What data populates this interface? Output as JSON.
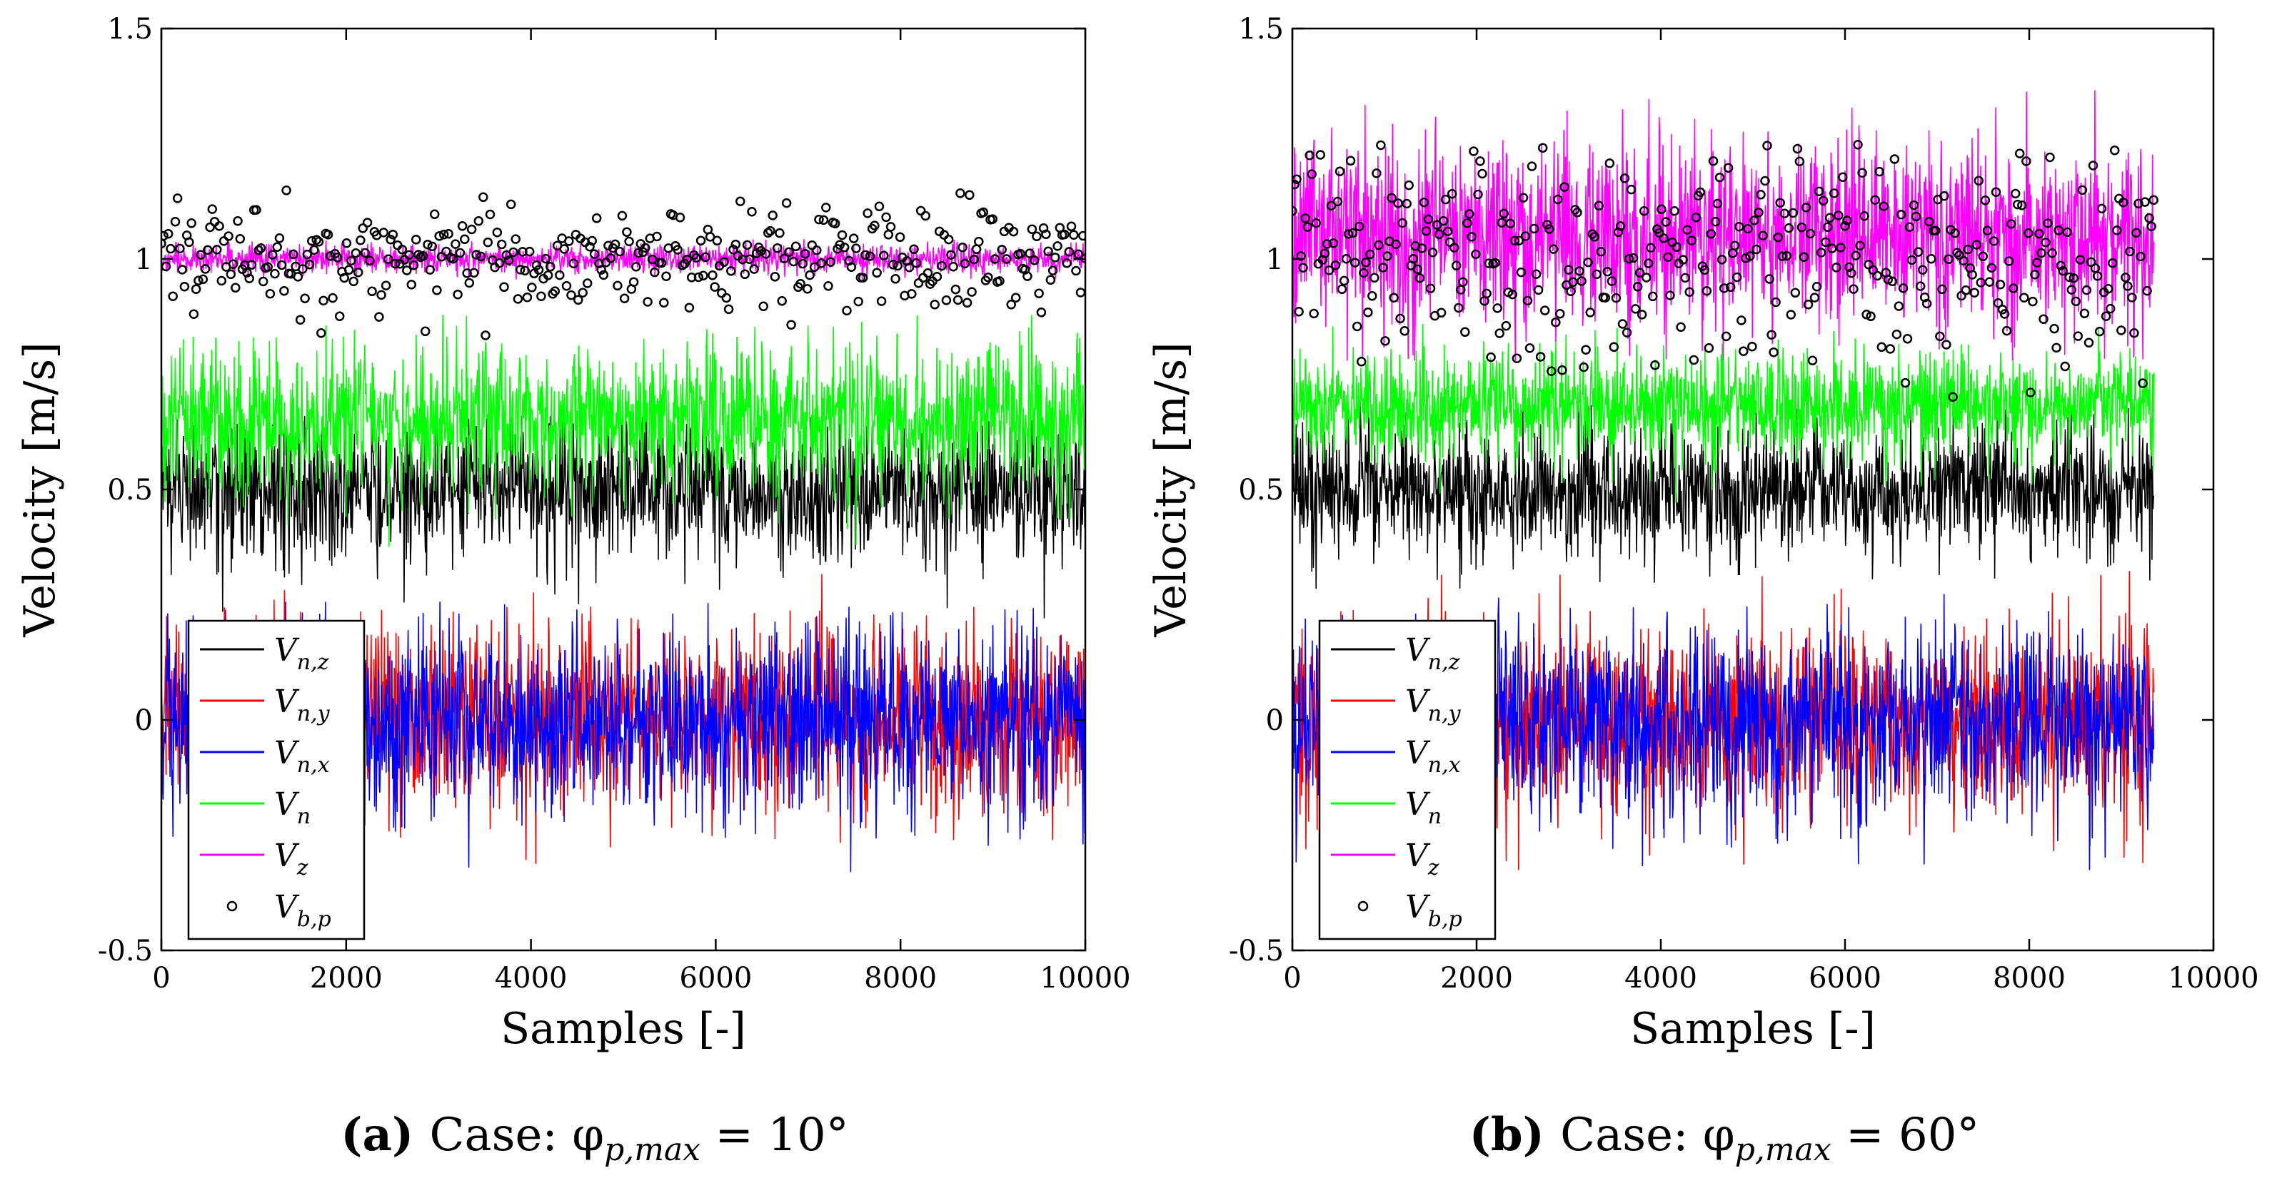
{
  "chart_data": [
    {
      "type": "line",
      "panel": "a",
      "caption": {
        "label": "(a)",
        "text": "Case: φ",
        "sub": "p,max",
        "tail": " = 10°"
      },
      "xlabel": "Samples [-]",
      "ylabel": "Velocity [m/s]",
      "xlim": [
        0,
        10000
      ],
      "ylim": [
        -0.5,
        1.5
      ],
      "xticks": [
        0,
        2000,
        4000,
        6000,
        8000,
        10000
      ],
      "yticks": [
        -0.5,
        0,
        0.5,
        1,
        1.5
      ],
      "ytick_labels": [
        "-0.5",
        "0",
        "0.5",
        "1",
        "1.5"
      ],
      "grid": false,
      "legend_position": "bottom-left",
      "n_samples": 10000,
      "series": [
        {
          "name": "V",
          "name_sub": "n,z",
          "style": "line",
          "color": "#000000",
          "mean": 0.5,
          "std": 0.08,
          "min": 0.2,
          "max": 0.66
        },
        {
          "name": "V",
          "name_sub": "n,y",
          "style": "line",
          "color": "#ff0000",
          "mean": 0.0,
          "std": 0.1,
          "min": -0.32,
          "max": 0.32
        },
        {
          "name": "V",
          "name_sub": "n,x",
          "style": "line",
          "color": "#0000ff",
          "mean": 0.0,
          "std": 0.1,
          "min": -0.33,
          "max": 0.26
        },
        {
          "name": "V",
          "name_sub": "n",
          "style": "line",
          "color": "#00ff00",
          "mean": 0.65,
          "std": 0.08,
          "min": 0.33,
          "max": 0.88
        },
        {
          "name": "V",
          "name_sub": "z",
          "style": "line",
          "color": "#ff00ff",
          "mean": 1.0,
          "std": 0.015,
          "min": 0.95,
          "max": 1.05
        },
        {
          "name": "V",
          "name_sub": "b,p",
          "style": "marker",
          "color": "#000000",
          "mean": 1.0,
          "std": 0.055,
          "min": 0.83,
          "max": 1.15,
          "n_points": 400
        }
      ]
    },
    {
      "type": "line",
      "panel": "b",
      "caption": {
        "label": "(b)",
        "text": "Case: φ",
        "sub": "p,max",
        "tail": " = 60°"
      },
      "xlabel": "Samples [-]",
      "ylabel": "Velocity [m/s]",
      "xlim": [
        0,
        10000
      ],
      "ylim": [
        -0.5,
        1.5
      ],
      "xticks": [
        0,
        2000,
        4000,
        6000,
        8000,
        10000
      ],
      "yticks": [
        -0.5,
        0,
        0.5,
        1,
        1.5
      ],
      "ytick_labels": [
        "-0.5",
        "0",
        "0.5",
        "1",
        "1.5"
      ],
      "grid": false,
      "legend_position": "bottom-left",
      "n_samples": 9350,
      "series": [
        {
          "name": "V",
          "name_sub": "n,z",
          "style": "line",
          "color": "#000000",
          "mean": 0.5,
          "std": 0.07,
          "min": 0.25,
          "max": 0.7
        },
        {
          "name": "V",
          "name_sub": "n,y",
          "style": "line",
          "color": "#ff0000",
          "mean": 0.0,
          "std": 0.1,
          "min": -0.34,
          "max": 0.34
        },
        {
          "name": "V",
          "name_sub": "n,x",
          "style": "line",
          "color": "#0000ff",
          "mean": 0.0,
          "std": 0.1,
          "min": -0.33,
          "max": 0.32
        },
        {
          "name": "V",
          "name_sub": "n",
          "style": "line",
          "color": "#00ff00",
          "mean": 0.68,
          "std": 0.06,
          "min": 0.47,
          "max": 0.87
        },
        {
          "name": "V",
          "name_sub": "z",
          "style": "line",
          "color": "#ff00ff",
          "mean": 1.05,
          "std": 0.1,
          "min": 0.78,
          "max": 1.5
        },
        {
          "name": "V",
          "name_sub": "b,p",
          "style": "marker",
          "color": "#000000",
          "mean": 1.0,
          "std": 0.11,
          "min": 0.7,
          "max": 1.25,
          "n_points": 400
        }
      ]
    }
  ]
}
